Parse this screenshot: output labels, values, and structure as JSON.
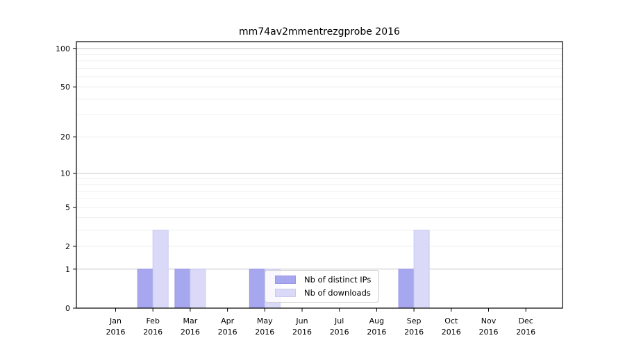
{
  "page": {
    "background": "#ffffff"
  },
  "chart_data": {
    "type": "bar",
    "title": "mm74av2mmentrezgprobe 2016",
    "year_line": "2016",
    "categories": [
      "Jan",
      "Feb",
      "Mar",
      "Apr",
      "May",
      "Jun",
      "Jul",
      "Aug",
      "Sep",
      "Oct",
      "Nov",
      "Dec"
    ],
    "series": [
      {
        "name": "Nb of distinct IPs",
        "color": "#a7a7f0",
        "edge_color": "#9898e8",
        "values": [
          0,
          1,
          1,
          0,
          1,
          0,
          0,
          0,
          1,
          0,
          0,
          0
        ]
      },
      {
        "name": "Nb of downloads",
        "color": "#dadaf8",
        "edge_color": "#c9c9f0",
        "values": [
          0,
          3,
          1,
          0,
          1,
          0,
          0,
          0,
          3,
          0,
          0,
          0
        ]
      }
    ],
    "yscale": "log1p",
    "ylim": [
      0,
      113
    ],
    "yticks": [
      0,
      1,
      2,
      5,
      10,
      20,
      50,
      100
    ],
    "major_gridlines": [
      1,
      10,
      100
    ],
    "minor_gridlines": [
      2,
      3,
      4,
      5,
      6,
      7,
      8,
      9,
      20,
      30,
      40,
      50,
      60,
      70,
      80,
      90
    ],
    "grid_color_major": "#c8c8c8",
    "grid_color_minor": "#eeeeee",
    "axis_color": "#000000",
    "text_color": "#000000",
    "legend_position": "lower center",
    "grid": "on",
    "xlabel": "",
    "ylabel": ""
  }
}
